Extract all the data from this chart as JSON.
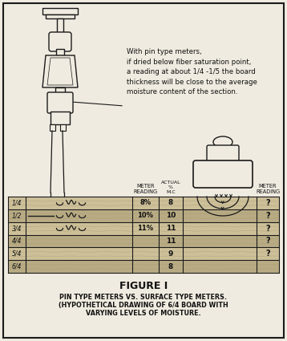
{
  "bg_color": "#f0ebe0",
  "border_color": "#222222",
  "title": "FIGURE I",
  "subtitle_line1": "PIN TYPE METERS VS. SURFACE TYPE METERS.",
  "subtitle_line2": "(HYPOTHETICAL DRAWING OF 6/4 BOARD WITH",
  "subtitle_line3": "VARYING LEVELS OF MOISTURE.",
  "annotation_text": "With pin type meters,\nif dried below fiber saturation point,\na reading at about 1/4 -1/5 the board\nthickness will be close to the average\nmoisture content of the section.",
  "row_labels": [
    "1/4",
    "1/2",
    "3/4",
    "4/4",
    "5/4",
    "6/4"
  ],
  "meter_readings_left": [
    "8%",
    "10%",
    "11%",
    "",
    "",
    ""
  ],
  "actual_mc": [
    "8",
    "10",
    "11",
    "11",
    "9",
    "8"
  ],
  "meter_readings_right": [
    "?",
    "?",
    "?",
    "?",
    "?",
    ""
  ],
  "wood_color_light": "#cdc099",
  "wood_color_dark": "#b8ab84",
  "wood_grain_color": "#a89870",
  "line_color": "#1a1a1a",
  "text_color": "#111111"
}
